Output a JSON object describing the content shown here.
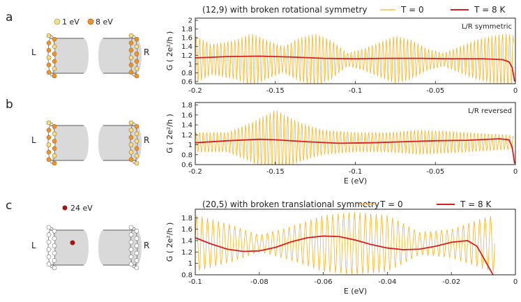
{
  "figure": {
    "panel_labels": [
      "a",
      "b",
      "c"
    ],
    "legend_top": {
      "left_dot": "1 eV",
      "right_dot": "8 eV"
    },
    "legend_c": "24 eV",
    "lead_left": "L",
    "lead_right": "R",
    "colors": {
      "t0": "#f5b324",
      "t8": "#d81e1e",
      "tube": "#d9d9d9",
      "site1": "#f0e08a",
      "site8": "#f0922b",
      "site24": "#a01515"
    }
  },
  "chart_data": [
    {
      "type": "line",
      "title": "(12,9) with broken rotational symmetry",
      "annotation": "L/R symmetric",
      "ylabel": "G ( 2e²/h )",
      "xlabel": "",
      "xlim": [
        -0.2,
        0
      ],
      "ylim": [
        0.55,
        2.05
      ],
      "xticks": [
        "-0.2",
        "-0.15",
        "-0.1",
        "-0.05",
        "0"
      ],
      "yticks": [
        "0.6",
        "0.8",
        "1",
        "1.2",
        "1.4",
        "1.6",
        "1.8",
        "2"
      ],
      "ytick_values": [
        0.6,
        0.8,
        1.0,
        1.2,
        1.4,
        1.6,
        1.8,
        2.0
      ],
      "xtick_values": [
        -0.2,
        -0.15,
        -0.1,
        -0.05,
        0
      ],
      "series": [
        {
          "name": "T = 0",
          "center": 1.1,
          "period": 0.0022,
          "x_end": -0.001,
          "envelope": {
            "x": [
              -0.2,
              -0.19,
              -0.175,
              -0.165,
              -0.155,
              -0.145,
              -0.135,
              -0.125,
              -0.115,
              -0.105,
              -0.095,
              -0.085,
              -0.075,
              -0.065,
              -0.055,
              -0.045,
              -0.035,
              -0.025,
              -0.015,
              -0.005,
              -0.001
            ],
            "amp": [
              0.55,
              0.35,
              0.45,
              0.6,
              0.45,
              0.3,
              0.5,
              0.6,
              0.45,
              0.15,
              0.25,
              0.4,
              0.55,
              0.45,
              0.25,
              0.15,
              0.3,
              0.45,
              0.55,
              0.6,
              0.55
            ]
          }
        },
        {
          "name": "T = 8 K",
          "x": [
            -0.2,
            -0.18,
            -0.16,
            -0.14,
            -0.12,
            -0.1,
            -0.08,
            -0.06,
            -0.04,
            -0.02,
            -0.008,
            -0.004,
            -0.002,
            -0.0005
          ],
          "y": [
            1.14,
            1.17,
            1.18,
            1.16,
            1.13,
            1.12,
            1.13,
            1.13,
            1.12,
            1.12,
            1.1,
            1.05,
            0.92,
            0.6
          ]
        }
      ]
    },
    {
      "type": "line",
      "title": "",
      "annotation": "L/R reversed",
      "ylabel": "G ( 2e²/h )",
      "xlabel": "E (eV)",
      "xlim": [
        -0.2,
        0
      ],
      "ylim": [
        0.6,
        1.85
      ],
      "xticks": [
        "-0.2",
        "-0.15",
        "-0.1",
        "-0.05",
        "0"
      ],
      "yticks": [
        "0.6",
        "0.8",
        "1",
        "1.2",
        "1.4",
        "1.6",
        "1.8"
      ],
      "ytick_values": [
        0.6,
        0.8,
        1.0,
        1.2,
        1.4,
        1.6,
        1.8
      ],
      "xtick_values": [
        -0.2,
        -0.15,
        -0.1,
        -0.05,
        0
      ],
      "series": [
        {
          "name": "T = 0",
          "center": 1.05,
          "period": 0.0022,
          "x_end": -0.001,
          "envelope": {
            "x": [
              -0.2,
              -0.18,
              -0.165,
              -0.15,
              -0.135,
              -0.12,
              -0.1,
              -0.08,
              -0.06,
              -0.04,
              -0.02,
              -0.005,
              -0.001
            ],
            "amp": [
              0.2,
              0.2,
              0.4,
              0.65,
              0.4,
              0.25,
              0.2,
              0.2,
              0.25,
              0.22,
              0.18,
              0.15,
              0.12
            ]
          }
        },
        {
          "name": "T = 8 K",
          "x": [
            -0.2,
            -0.18,
            -0.16,
            -0.15,
            -0.13,
            -0.11,
            -0.09,
            -0.07,
            -0.05,
            -0.03,
            -0.01,
            -0.004,
            -0.002,
            -0.0005
          ],
          "y": [
            1.04,
            1.08,
            1.11,
            1.1,
            1.06,
            1.03,
            1.04,
            1.06,
            1.08,
            1.09,
            1.12,
            1.1,
            0.95,
            0.62
          ]
        }
      ]
    },
    {
      "type": "line",
      "title": "(20,5) with broken translational symmetry",
      "annotation": "",
      "ylabel": "G ( 2e²/h )",
      "xlabel": "E (eV)",
      "xlim": [
        -0.1,
        0
      ],
      "ylim": [
        0.8,
        1.95
      ],
      "xticks": [
        "-0.1",
        "-0.08",
        "-0.06",
        "-0.04",
        "-0.02",
        "0"
      ],
      "yticks": [
        "0.8",
        "1",
        "1.2",
        "1.4",
        "1.6",
        "1.8"
      ],
      "ytick_values": [
        0.8,
        1.0,
        1.2,
        1.4,
        1.6,
        1.8
      ],
      "xtick_values": [
        -0.1,
        -0.08,
        -0.06,
        -0.04,
        -0.02,
        0
      ],
      "series": [
        {
          "name": "T = 0",
          "center": 1.35,
          "period": 0.0017,
          "x_end": -0.0065,
          "envelope": {
            "x": [
              -0.1,
              -0.09,
              -0.08,
              -0.07,
              -0.06,
              -0.05,
              -0.04,
              -0.03,
              -0.02,
              -0.01,
              -0.0065
            ],
            "amp": [
              0.5,
              0.35,
              0.15,
              0.3,
              0.5,
              0.55,
              0.5,
              0.2,
              0.25,
              0.45,
              0.5
            ]
          }
        },
        {
          "name": "T = 8 K",
          "x": [
            -0.1,
            -0.095,
            -0.09,
            -0.085,
            -0.08,
            -0.075,
            -0.07,
            -0.065,
            -0.06,
            -0.055,
            -0.05,
            -0.045,
            -0.04,
            -0.035,
            -0.03,
            -0.025,
            -0.02,
            -0.015,
            -0.012,
            -0.01,
            -0.008,
            -0.007
          ],
          "y": [
            1.45,
            1.34,
            1.25,
            1.21,
            1.22,
            1.28,
            1.38,
            1.45,
            1.48,
            1.47,
            1.41,
            1.33,
            1.27,
            1.24,
            1.25,
            1.3,
            1.37,
            1.4,
            1.3,
            1.1,
            0.9,
            0.8
          ]
        }
      ]
    }
  ]
}
